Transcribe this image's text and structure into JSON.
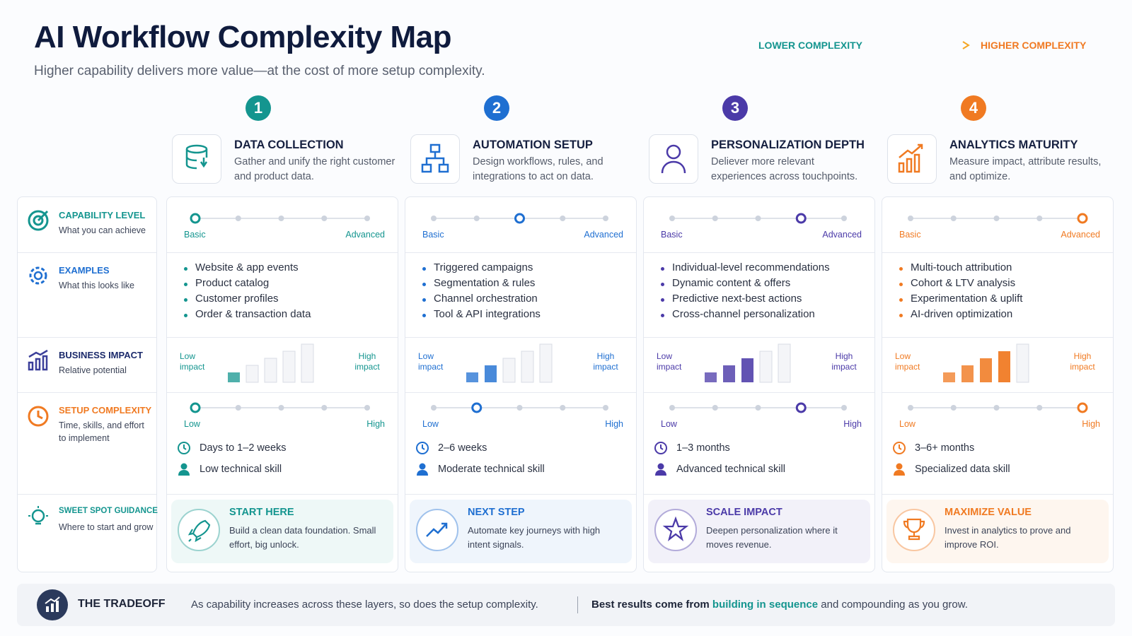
{
  "header": {
    "title": "AI Workflow Complexity Map",
    "subtitle": "Higher capability delivers more value—at the cost of more setup complexity.",
    "legend_low": "LOWER COMPLEXITY",
    "legend_high": "HIGHER COMPLEXITY"
  },
  "row_labels": [
    {
      "title": "CAPABILITY LEVEL",
      "subtitle": "What you can achieve"
    },
    {
      "title": "EXAMPLES",
      "subtitle": "What this looks like"
    },
    {
      "title": "BUSINESS IMPACT",
      "subtitle": "Relative potential"
    },
    {
      "title": "SETUP COMPLEXITY",
      "subtitle": "Time, skills, and effort to implement"
    },
    {
      "title": "SWEET SPOT GUIDANCE",
      "subtitle": "Where to start and grow"
    }
  ],
  "steps": [
    {
      "number": 1,
      "color": "#14958f",
      "title": "DATA COLLECTION",
      "description": "Gather and unify the right customer and product data.",
      "capability": {
        "low": "Basic",
        "high": "Advanced",
        "level": 1
      },
      "examples": [
        "Website & app events",
        "Product catalog",
        "Customer profiles",
        "Order & transaction data"
      ],
      "impact": {
        "low": "Low impact",
        "high": "High impact",
        "level": 1
      },
      "setup": {
        "low": "Low",
        "high": "High",
        "level": 1,
        "time": "Days to 1–2 weeks",
        "skill": "Low technical skill"
      },
      "guidance": {
        "title": "START HERE",
        "text": "Build a clean data foundation. Small effort, big unlock."
      }
    },
    {
      "number": 2,
      "color": "#1f6fd1",
      "title": "AUTOMATION SETUP",
      "description": "Design workflows, rules, and integrations to act on data.",
      "capability": {
        "low": "Basic",
        "high": "Advanced",
        "level": 3
      },
      "examples": [
        "Triggered campaigns",
        "Segmentation & rules",
        "Channel orchestration",
        "Tool & API integrations"
      ],
      "impact": {
        "low": "Low impact",
        "high": "High impact",
        "level": 2
      },
      "setup": {
        "low": "Low",
        "high": "High",
        "level": 2,
        "time": "2–6 weeks",
        "skill": "Moderate technical skill"
      },
      "guidance": {
        "title": "NEXT STEP",
        "text": "Automate key journeys with high intent signals."
      }
    },
    {
      "number": 3,
      "color": "#4b3aa8",
      "title": "PERSONALIZATION DEPTH",
      "description": "Deliever more relevant experiences across touchpoints.",
      "capability": {
        "low": "Basic",
        "high": "Advanced",
        "level": 4
      },
      "examples": [
        "Individual-level recommendations",
        "Dynamic content & offers",
        "Predictive next-best actions",
        "Cross-channel personalization"
      ],
      "impact": {
        "low": "Low impact",
        "high": "High impact",
        "level": 3
      },
      "setup": {
        "low": "Low",
        "high": "High",
        "level": 4,
        "time": "1–3 months",
        "skill": "Advanced technical skill"
      },
      "guidance": {
        "title": "SCALE IMPACT",
        "text": "Deepen personalization where it moves revenue."
      }
    },
    {
      "number": 4,
      "color": "#f07a22",
      "title": "ANALYTICS MATURITY",
      "description": "Measure impact, attribute results, and optimize.",
      "capability": {
        "low": "Basic",
        "high": "Advanced",
        "level": 5
      },
      "examples": [
        "Multi-touch attribution",
        "Cohort & LTV analysis",
        "Experimentation & uplift",
        "AI-driven optimization"
      ],
      "impact": {
        "low": "Low impact",
        "high": "High impact",
        "level": 4
      },
      "setup": {
        "low": "Low",
        "high": "High",
        "level": 5,
        "time": "3–6+ months",
        "skill": "Specialized data skill"
      },
      "guidance": {
        "title": "MAXIMIZE VALUE",
        "text": "Invest in analytics to prove and improve ROI."
      }
    }
  ],
  "footer": {
    "label": "THE TRADEOFF",
    "text": "As capability increases across these layers, so does the setup complexity.",
    "lead": "Best results come from",
    "highlight": "building in sequence",
    "rest": "and compounding as you grow."
  }
}
